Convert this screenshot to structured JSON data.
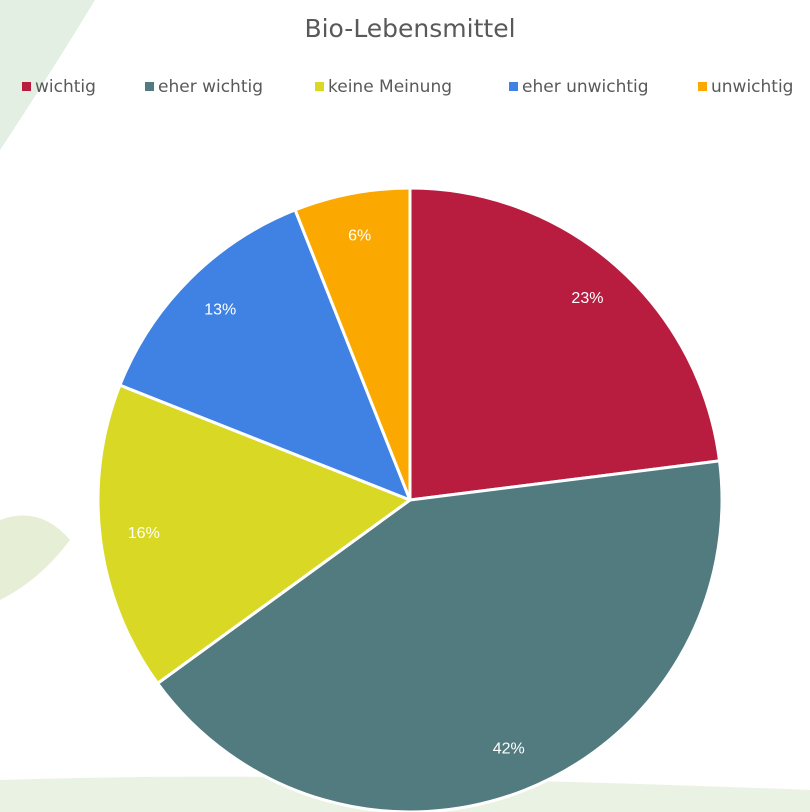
{
  "chart_data": {
    "type": "pie",
    "title": "Bio-Lebensmittel",
    "categories": [
      "wichtig",
      "eher wichtig",
      "keine Meinung",
      "eher unwichtig",
      "unwichtig"
    ],
    "values": [
      23,
      42,
      16,
      13,
      6
    ],
    "value_labels": [
      "23%",
      "42%",
      "16%",
      "13%",
      "6%"
    ],
    "colors": [
      "#b81d40",
      "#527b80",
      "#d9d824",
      "#3f82e4",
      "#fba800"
    ],
    "legend": "top"
  }
}
